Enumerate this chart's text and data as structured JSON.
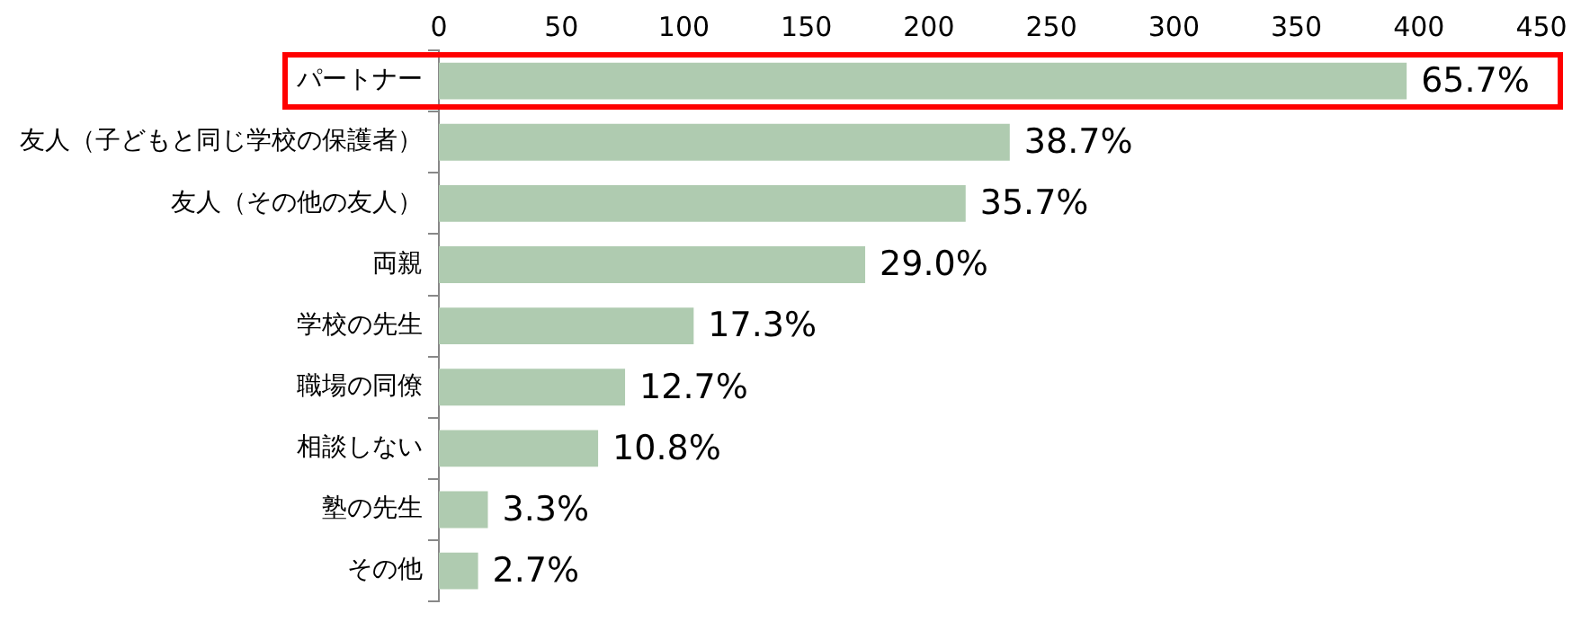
{
  "chart_data": {
    "type": "bar",
    "orientation": "horizontal",
    "categories": [
      "パートナー",
      "友人（子どもと同じ学校の保護者）",
      "友人（その他の友人）",
      "両親",
      "学校の先生",
      "職場の同僚",
      "相談しない",
      "塾の先生",
      "その他"
    ],
    "values": [
      395,
      233,
      215,
      174,
      104,
      76,
      65,
      20,
      16
    ],
    "annotations": [
      {
        "text": "65.7%",
        "x": 395,
        "y": "パートナー"
      },
      {
        "text": "38.7%",
        "x": 233,
        "y": "友人（子どもと同じ学校の保護者）"
      },
      {
        "text": "35.7%",
        "x": 215,
        "y": "友人（その他の友人）"
      },
      {
        "text": "29.0%",
        "x": 174,
        "y": "両親"
      },
      {
        "text": "17.3%",
        "x": 104,
        "y": "学校の先生"
      },
      {
        "text": "12.7%",
        "x": 76,
        "y": "職場の同僚"
      },
      {
        "text": "10.8%",
        "x": 65,
        "y": "相談しない"
      },
      {
        "text": "3.3%",
        "x": 20,
        "y": "塾の先生"
      },
      {
        "text": "2.7%",
        "x": 16,
        "y": "その他"
      }
    ],
    "color": "#afcbb0",
    "xlim": [
      0,
      450
    ],
    "xticks": [
      0,
      50,
      100,
      150,
      200,
      250,
      300,
      350,
      400,
      450
    ],
    "grid": false,
    "legend": false
  }
}
